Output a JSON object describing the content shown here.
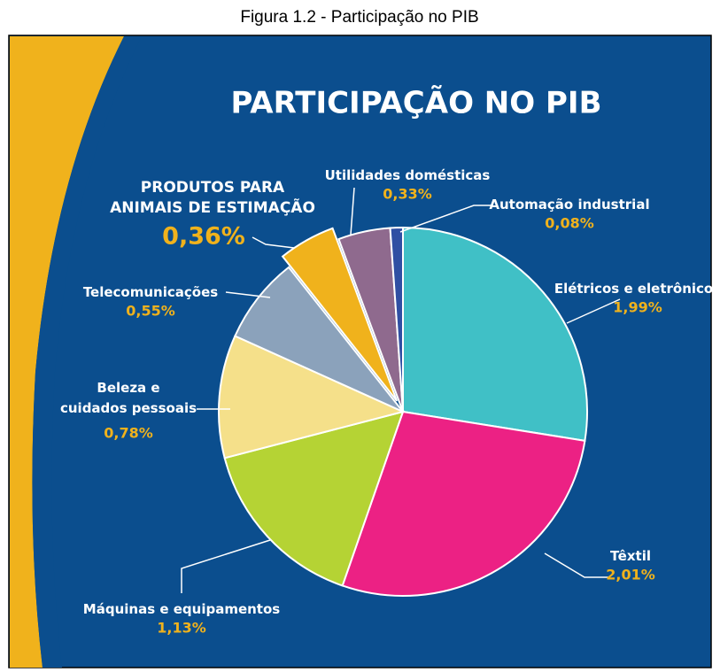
{
  "caption": "Figura 1.2 - Participação no PIB",
  "chart_data": {
    "type": "pie",
    "title": "PARTICIPAÇÃO NO PIB",
    "categories": [
      "Elétricos e eletrônicos",
      "Têxtil",
      "Máquinas e equipamentos",
      "Beleza e\ncuidados pessoais",
      "Telecomunicações",
      "PRODUTOS PARA\nANIMAIS DE ESTIMAÇÃO",
      "Utilidades domésticas",
      "Automação industrial"
    ],
    "values": [
      1.99,
      2.01,
      1.13,
      0.78,
      0.55,
      0.36,
      0.33,
      0.08
    ],
    "value_labels": [
      "1,99%",
      "2,01%",
      "1,13%",
      "0,78%",
      "0,55%",
      "0,36%",
      "0,33%",
      "0,08%"
    ],
    "colors": [
      "#40c0c6",
      "#ec2184",
      "#b5d334",
      "#f5e08a",
      "#8ba2bb",
      "#f0b21c",
      "#8f6a8e",
      "#2f4fa3"
    ]
  }
}
